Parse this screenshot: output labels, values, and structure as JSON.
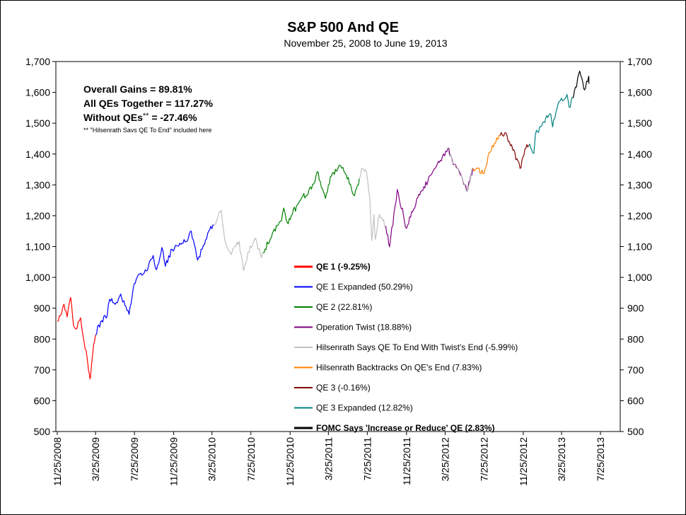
{
  "chart_data": {
    "type": "line",
    "title": "S&P 500 And QE",
    "subtitle": "November 25, 2008 to June 19, 2013",
    "ylim": [
      500,
      1700
    ],
    "yticks": [
      "500",
      "600",
      "700",
      "800",
      "900",
      "1,000",
      "1,100",
      "1,200",
      "1,300",
      "1,400",
      "1,500",
      "1,600",
      "1,700"
    ],
    "ytick_values": [
      500,
      600,
      700,
      800,
      900,
      1000,
      1100,
      1200,
      1300,
      1400,
      1500,
      1600,
      1700
    ],
    "xlim": [
      "2008-11-25",
      "2013-09-25"
    ],
    "xticks": [
      "11/25/2008",
      "3/25/2009",
      "7/25/2009",
      "11/25/2009",
      "3/25/2010",
      "7/25/2010",
      "11/25/2010",
      "3/25/2011",
      "7/25/2011",
      "11/25/2011",
      "3/25/2012",
      "7/25/2012",
      "11/25/2012",
      "3/25/2013",
      "7/25/2013"
    ],
    "xtick_dates": [
      "2008-11-25",
      "2009-03-25",
      "2009-07-25",
      "2009-11-25",
      "2010-03-25",
      "2010-07-25",
      "2010-11-25",
      "2011-03-25",
      "2011-07-25",
      "2011-11-25",
      "2012-03-25",
      "2012-07-25",
      "2012-11-25",
      "2013-03-25",
      "2013-07-25"
    ],
    "stats": {
      "overall": "Overall Gains = 89.81%",
      "all_qe": "All QEs Together = 117.27%",
      "without_qe_prefix": "Without QEs",
      "without_qe_suffix": " = -27.46%",
      "without_qe_stars": "**",
      "footnote": "** \"Hilsenrath Savs QE To End\" included here"
    },
    "series": [
      {
        "name": "QE 1 (-9.25%)",
        "color": "#ff0000",
        "points": [
          [
            "2008-11-25",
            857
          ],
          [
            "2008-12-05",
            876
          ],
          [
            "2008-12-16",
            913
          ],
          [
            "2008-12-26",
            872
          ],
          [
            "2009-01-06",
            935
          ],
          [
            "2009-01-15",
            843
          ],
          [
            "2009-01-26",
            836
          ],
          [
            "2009-02-06",
            869
          ],
          [
            "2009-02-17",
            790
          ],
          [
            "2009-02-27",
            735
          ],
          [
            "2009-03-06",
            683
          ],
          [
            "2009-03-09",
            676
          ],
          [
            "2009-03-16",
            753
          ],
          [
            "2009-03-25",
            813
          ]
        ]
      },
      {
        "name": "QE 1 Expanded (50.29%)",
        "color": "#0000ff",
        "points": [
          [
            "2009-03-25",
            813
          ],
          [
            "2009-04-10",
            856
          ],
          [
            "2009-04-30",
            873
          ],
          [
            "2009-05-08",
            929
          ],
          [
            "2009-05-29",
            919
          ],
          [
            "2009-06-12",
            946
          ],
          [
            "2009-07-08",
            880
          ],
          [
            "2009-07-24",
            979
          ],
          [
            "2009-08-07",
            1010
          ],
          [
            "2009-08-31",
            1021
          ],
          [
            "2009-09-22",
            1071
          ],
          [
            "2009-10-02",
            1025
          ],
          [
            "2009-10-19",
            1097
          ],
          [
            "2009-10-30",
            1036
          ],
          [
            "2009-11-20",
            1091
          ],
          [
            "2009-12-31",
            1115
          ],
          [
            "2010-01-19",
            1150
          ],
          [
            "2010-02-08",
            1056
          ],
          [
            "2010-02-26",
            1104
          ],
          [
            "2010-03-15",
            1150
          ],
          [
            "2010-03-31",
            1169
          ]
        ]
      },
      {
        "name": "Hilsenrath Says QE To End With Twist's End (-5.99%)",
        "color": "#c0c0c0",
        "points": [
          [
            "2010-03-31",
            1169
          ],
          [
            "2010-04-23",
            1217
          ],
          [
            "2010-05-07",
            1110
          ],
          [
            "2010-05-25",
            1074
          ],
          [
            "2010-06-18",
            1117
          ],
          [
            "2010-07-02",
            1022
          ],
          [
            "2010-07-23",
            1102
          ],
          [
            "2010-08-09",
            1127
          ],
          [
            "2010-08-27",
            1064
          ],
          [
            "2010-09-01",
            1080
          ]
        ]
      },
      {
        "name": "QE 2 (22.81%)",
        "color": "#008000",
        "points": [
          [
            "2010-09-01",
            1080
          ],
          [
            "2010-09-30",
            1141
          ],
          [
            "2010-10-29",
            1183
          ],
          [
            "2010-11-05",
            1225
          ],
          [
            "2010-11-16",
            1178
          ],
          [
            "2010-12-31",
            1258
          ],
          [
            "2011-01-31",
            1286
          ],
          [
            "2011-02-18",
            1343
          ],
          [
            "2011-03-16",
            1256
          ],
          [
            "2011-03-31",
            1326
          ],
          [
            "2011-04-29",
            1364
          ],
          [
            "2011-05-20",
            1333
          ],
          [
            "2011-06-15",
            1265
          ],
          [
            "2011-06-30",
            1320
          ]
        ]
      },
      {
        "name": "Hilsenrath Says QE To End With Twist's End (-5.99%)",
        "color": "#c0c0c0",
        "points": [
          [
            "2011-06-30",
            1320
          ],
          [
            "2011-07-07",
            1353
          ],
          [
            "2011-07-22",
            1345
          ],
          [
            "2011-08-02",
            1254
          ],
          [
            "2011-08-08",
            1119
          ],
          [
            "2011-08-15",
            1204
          ],
          [
            "2011-08-19",
            1123
          ],
          [
            "2011-09-01",
            1204
          ],
          [
            "2011-09-21",
            1166
          ]
        ]
      },
      {
        "name": "Operation Twist (18.88%)",
        "color": "#800080",
        "points": [
          [
            "2011-09-21",
            1166
          ],
          [
            "2011-10-03",
            1099
          ],
          [
            "2011-10-27",
            1285
          ],
          [
            "2011-11-25",
            1159
          ],
          [
            "2011-12-30",
            1258
          ],
          [
            "2012-01-31",
            1312
          ],
          [
            "2012-02-29",
            1366
          ],
          [
            "2012-03-30",
            1408
          ],
          [
            "2012-04-02",
            1419
          ],
          [
            "2012-04-23",
            1366
          ],
          [
            "2012-05-15",
            1330
          ],
          [
            "2012-06-01",
            1278
          ],
          [
            "2012-06-20",
            1355
          ]
        ]
      },
      {
        "name": "Hilsenrath Says QE To End With Twist's End (-5.99%)",
        "color": "#c0c0c0",
        "points": [
          [
            "2012-04-02",
            1419
          ],
          [
            "2012-04-23",
            1366
          ],
          [
            "2012-05-15",
            1330
          ],
          [
            "2012-06-01",
            1278
          ],
          [
            "2012-06-20",
            1355
          ]
        ]
      },
      {
        "name": "Hilsenrath Backtracks On QE's End (7.83%)",
        "color": "#ff8000",
        "points": [
          [
            "2012-06-20",
            1355
          ],
          [
            "2012-07-06",
            1354
          ],
          [
            "2012-07-25",
            1337
          ],
          [
            "2012-08-10",
            1405
          ],
          [
            "2012-09-13",
            1460
          ]
        ]
      },
      {
        "name": "QE 3 (-0.16%)",
        "color": "#800000",
        "points": [
          [
            "2012-09-13",
            1460
          ],
          [
            "2012-09-21",
            1460
          ],
          [
            "2012-10-05",
            1460
          ],
          [
            "2012-10-23",
            1413
          ],
          [
            "2012-11-15",
            1353
          ],
          [
            "2012-11-30",
            1416
          ],
          [
            "2012-12-12",
            1428
          ]
        ]
      },
      {
        "name": "QE 3 Expanded (12.82%)",
        "color": "#008080",
        "points": [
          [
            "2012-12-12",
            1428
          ],
          [
            "2012-12-28",
            1402
          ],
          [
            "2013-01-02",
            1462
          ],
          [
            "2013-01-25",
            1503
          ],
          [
            "2013-02-19",
            1530
          ],
          [
            "2013-02-25",
            1488
          ],
          [
            "2013-03-14",
            1563
          ],
          [
            "2013-04-11",
            1593
          ],
          [
            "2013-04-18",
            1552
          ],
          [
            "2013-05-01",
            1582
          ]
        ]
      },
      {
        "name": "FOMC Says 'Increase or Reduce' QE (2.83%)",
        "color": "#000000",
        "points": [
          [
            "2013-05-01",
            1582
          ],
          [
            "2013-05-21",
            1669
          ],
          [
            "2013-05-31",
            1631
          ],
          [
            "2013-06-05",
            1608
          ],
          [
            "2013-06-18",
            1652
          ],
          [
            "2013-06-19",
            1628
          ]
        ]
      }
    ],
    "legend": [
      {
        "label": "QE 1 (-9.25%)",
        "color": "#ff0000",
        "bold": true
      },
      {
        "label": "QE 1 Expanded (50.29%)",
        "color": "#0000ff",
        "bold": false
      },
      {
        "label": "QE 2 (22.81%)",
        "color": "#008000",
        "bold": false
      },
      {
        "label": "Operation Twist (18.88%)",
        "color": "#800080",
        "bold": false
      },
      {
        "label": "Hilsenrath Says QE To End With Twist's End (-5.99%)",
        "color": "#c0c0c0",
        "bold": false
      },
      {
        "label": "Hilsenrath Backtracks On QE's End (7.83%)",
        "color": "#ff8000",
        "bold": false
      },
      {
        "label": "QE 3 (-0.16%)",
        "color": "#800000",
        "bold": false
      },
      {
        "label": "QE 3 Expanded (12.82%)",
        "color": "#008080",
        "bold": false
      },
      {
        "label": "FOMC Says 'Increase or Reduce' QE (2.83%)",
        "color": "#000000",
        "bold": true
      }
    ]
  }
}
